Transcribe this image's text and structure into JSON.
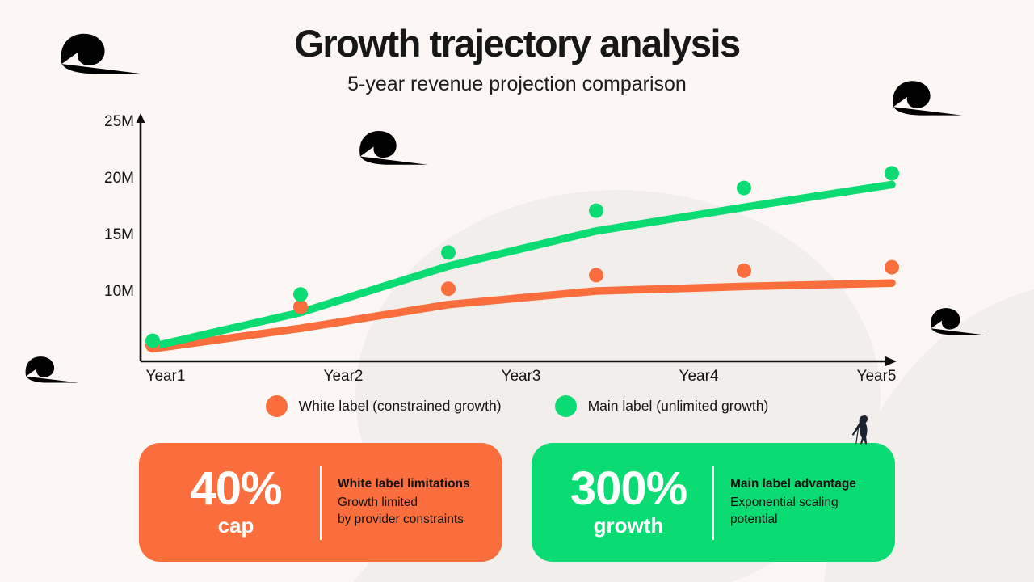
{
  "header": {
    "title": "Growth trajectory analysis",
    "subtitle": "5-year revenue projection comparison"
  },
  "chart_data": {
    "type": "line",
    "title": "Growth trajectory analysis",
    "subtitle": "5-year revenue projection comparison",
    "x_labels": [
      "Year1",
      "Year2",
      "Year3",
      "Year4",
      "Year5"
    ],
    "y_ticks": [
      {
        "label": "$25M",
        "value": 25
      },
      {
        "label": "$20M",
        "value": 20
      },
      {
        "label": "$15M",
        "value": 15
      },
      {
        "label": "$10M",
        "value": 10
      }
    ],
    "y_unit": "$M",
    "ylim": [
      3.8,
      25
    ],
    "grid": false,
    "legend_position": "bottom",
    "series": [
      {
        "name": "White label (constrained growth)",
        "color": "#F96E3C",
        "trend_line": [
          4.9,
          6.7,
          8.8,
          10.0,
          10.4,
          10.7
        ],
        "scatter_dots": [
          5.2,
          8.6,
          10.2,
          11.4,
          11.8,
          12.1
        ]
      },
      {
        "name": "Main label (unlimited growth)",
        "color": "#0ADC73",
        "trend_line": [
          5.1,
          8.1,
          12.2,
          15.3,
          17.4,
          19.4
        ],
        "scatter_dots": [
          5.6,
          9.7,
          13.4,
          17.1,
          19.1,
          20.4
        ]
      }
    ]
  },
  "legend": {
    "items": [
      {
        "label": "White label (constrained growth)",
        "color": "#F96E3C"
      },
      {
        "label": "Main label (unlimited growth)",
        "color": "#0ADC73"
      }
    ]
  },
  "cards": [
    {
      "stat": "40%",
      "stat_caption": "cap",
      "heading": "White label limitations",
      "body_line1": "Growth limited",
      "body_line2": "by provider constraints",
      "color": "#F96E3C"
    },
    {
      "stat": "300%",
      "stat_caption": "growth",
      "heading": "Main label advantage",
      "body_line1": "Exponential scaling",
      "body_line2": "potential",
      "color": "#0ADC73"
    }
  ],
  "colors": {
    "background": "#FCF7F4",
    "blob": "#F2EEEB",
    "axis": "#111111",
    "orange": "#F96E3C",
    "green": "#0ADC73",
    "text_dark": "#171717"
  },
  "icons": [
    "wind-swirl-icon",
    "bird-icon"
  ]
}
